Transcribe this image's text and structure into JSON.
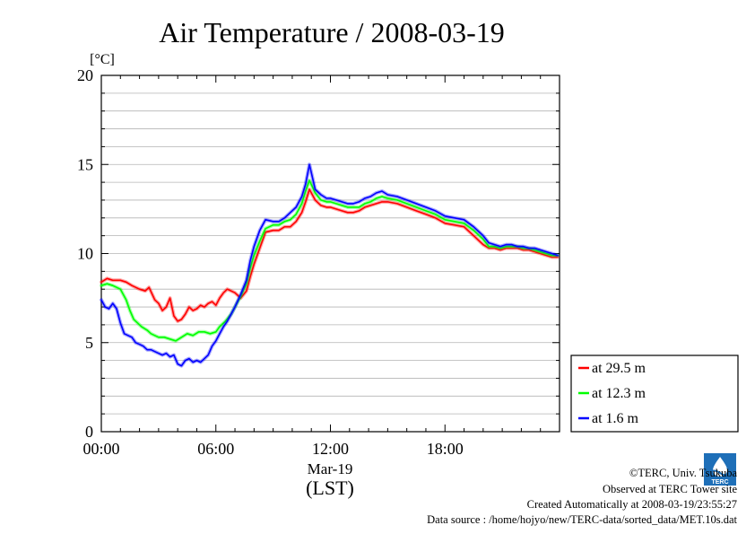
{
  "chart_data": {
    "type": "line",
    "title": "Air Temperature / 2008-03-19",
    "ylabel": "[°C]",
    "xlabel_date": "Mar-19",
    "xlabel_unit": "(LST)",
    "ylim": [
      0,
      20
    ],
    "xlim": [
      0,
      24
    ],
    "y_ticks": [
      "0",
      "5",
      "10",
      "15",
      "20"
    ],
    "x_ticks": [
      "00:00",
      "06:00",
      "12:00",
      "18:00"
    ],
    "grid": true,
    "legend_position": "right-bottom",
    "series": [
      {
        "name": "at 29.5 m",
        "color": "#ff0000",
        "x": [
          0,
          0.3,
          0.6,
          1.0,
          1.3,
          1.6,
          2.0,
          2.3,
          2.5,
          2.8,
          3.0,
          3.2,
          3.4,
          3.6,
          3.8,
          4.0,
          4.2,
          4.4,
          4.6,
          4.8,
          5.0,
          5.2,
          5.4,
          5.6,
          5.8,
          6.0,
          6.2,
          6.4,
          6.6,
          6.8,
          7.0,
          7.3,
          7.6,
          7.8,
          8.0,
          8.3,
          8.6,
          9.0,
          9.3,
          9.6,
          9.9,
          10.2,
          10.5,
          10.7,
          10.9,
          11.2,
          11.5,
          11.8,
          12.0,
          12.3,
          12.6,
          12.9,
          13.2,
          13.5,
          13.8,
          14.1,
          14.4,
          14.7,
          15.0,
          15.5,
          16.0,
          16.5,
          17.0,
          17.5,
          18.0,
          18.5,
          19.0,
          19.5,
          20.0,
          20.3,
          20.6,
          20.9,
          21.2,
          21.5,
          21.8,
          22.1,
          22.4,
          22.7,
          23.0,
          23.3,
          23.6,
          23.9
        ],
        "values": [
          8.4,
          8.6,
          8.5,
          8.5,
          8.4,
          8.2,
          8.0,
          7.9,
          8.1,
          7.4,
          7.2,
          6.8,
          7.0,
          7.5,
          6.5,
          6.2,
          6.3,
          6.6,
          7.0,
          6.8,
          6.9,
          7.1,
          7.0,
          7.2,
          7.3,
          7.1,
          7.5,
          7.8,
          8.0,
          7.9,
          7.8,
          7.5,
          7.9,
          8.7,
          9.4,
          10.3,
          11.2,
          11.3,
          11.3,
          11.5,
          11.5,
          11.8,
          12.3,
          12.9,
          13.6,
          13.0,
          12.7,
          12.6,
          12.6,
          12.5,
          12.4,
          12.3,
          12.3,
          12.4,
          12.6,
          12.7,
          12.8,
          12.9,
          12.9,
          12.8,
          12.6,
          12.4,
          12.2,
          12.0,
          11.7,
          11.6,
          11.5,
          11.0,
          10.5,
          10.3,
          10.3,
          10.2,
          10.3,
          10.3,
          10.3,
          10.2,
          10.2,
          10.1,
          10.0,
          9.9,
          9.8,
          9.8
        ]
      },
      {
        "name": "at 12.3 m",
        "color": "#00ff00",
        "x": [
          0,
          0.3,
          0.6,
          1.0,
          1.3,
          1.5,
          1.7,
          1.9,
          2.1,
          2.4,
          2.6,
          2.8,
          3.0,
          3.3,
          3.6,
          3.9,
          4.2,
          4.5,
          4.8,
          5.1,
          5.4,
          5.7,
          6.0,
          6.2,
          6.5,
          6.8,
          7.0,
          7.3,
          7.6,
          7.8,
          8.0,
          8.3,
          8.6,
          9.0,
          9.3,
          9.6,
          9.9,
          10.2,
          10.5,
          10.7,
          10.9,
          11.2,
          11.5,
          11.8,
          12.0,
          12.3,
          12.6,
          12.9,
          13.2,
          13.5,
          13.8,
          14.1,
          14.4,
          14.7,
          15.0,
          15.5,
          16.0,
          16.5,
          17.0,
          17.5,
          18.0,
          18.5,
          19.0,
          19.5,
          20.0,
          20.3,
          20.6,
          20.9,
          21.2,
          21.5,
          21.8,
          22.1,
          22.4,
          22.7,
          23.0,
          23.3,
          23.6,
          23.9
        ],
        "values": [
          8.2,
          8.3,
          8.2,
          8.0,
          7.4,
          6.8,
          6.3,
          6.1,
          5.9,
          5.7,
          5.5,
          5.4,
          5.3,
          5.3,
          5.2,
          5.1,
          5.3,
          5.5,
          5.4,
          5.6,
          5.6,
          5.5,
          5.6,
          5.9,
          6.2,
          6.6,
          7.0,
          7.6,
          8.3,
          9.2,
          9.9,
          10.7,
          11.4,
          11.6,
          11.6,
          11.8,
          11.9,
          12.2,
          12.8,
          13.5,
          14.1,
          13.4,
          13.0,
          12.9,
          12.9,
          12.8,
          12.7,
          12.6,
          12.6,
          12.6,
          12.8,
          12.9,
          13.1,
          13.2,
          13.1,
          13.0,
          12.8,
          12.6,
          12.4,
          12.2,
          11.9,
          11.8,
          11.7,
          11.3,
          10.8,
          10.4,
          10.4,
          10.3,
          10.4,
          10.4,
          10.4,
          10.3,
          10.3,
          10.2,
          10.1,
          10.0,
          9.9,
          9.9
        ]
      },
      {
        "name": "at 1.6 m",
        "color": "#0000ff",
        "x": [
          0,
          0.2,
          0.4,
          0.6,
          0.8,
          1.0,
          1.2,
          1.4,
          1.6,
          1.8,
          2.0,
          2.2,
          2.4,
          2.6,
          2.8,
          3.0,
          3.2,
          3.4,
          3.6,
          3.8,
          4.0,
          4.2,
          4.4,
          4.6,
          4.8,
          5.0,
          5.2,
          5.4,
          5.6,
          5.8,
          6.0,
          6.2,
          6.4,
          6.6,
          6.8,
          7.0,
          7.3,
          7.6,
          7.8,
          8.0,
          8.3,
          8.6,
          9.0,
          9.3,
          9.6,
          9.9,
          10.2,
          10.5,
          10.7,
          10.9,
          11.2,
          11.5,
          11.8,
          12.0,
          12.3,
          12.6,
          12.9,
          13.2,
          13.5,
          13.8,
          14.1,
          14.4,
          14.7,
          15.0,
          15.5,
          16.0,
          16.5,
          17.0,
          17.5,
          18.0,
          18.5,
          19.0,
          19.5,
          20.0,
          20.3,
          20.6,
          20.9,
          21.2,
          21.5,
          21.8,
          22.1,
          22.4,
          22.7,
          23.0,
          23.3,
          23.6,
          23.9
        ],
        "values": [
          7.4,
          7.0,
          6.9,
          7.2,
          6.9,
          6.1,
          5.5,
          5.4,
          5.3,
          5.0,
          4.9,
          4.8,
          4.6,
          4.6,
          4.5,
          4.4,
          4.3,
          4.4,
          4.2,
          4.3,
          3.8,
          3.7,
          4.0,
          4.1,
          3.9,
          4.0,
          3.9,
          4.1,
          4.3,
          4.8,
          5.1,
          5.5,
          5.9,
          6.2,
          6.6,
          7.0,
          7.7,
          8.5,
          9.6,
          10.4,
          11.3,
          11.9,
          11.8,
          11.8,
          12.0,
          12.3,
          12.6,
          13.2,
          13.9,
          15.0,
          13.6,
          13.3,
          13.1,
          13.1,
          13.0,
          12.9,
          12.8,
          12.8,
          12.9,
          13.1,
          13.2,
          13.4,
          13.5,
          13.3,
          13.2,
          13.0,
          12.8,
          12.6,
          12.4,
          12.1,
          12.0,
          11.9,
          11.5,
          11.0,
          10.6,
          10.5,
          10.4,
          10.5,
          10.5,
          10.4,
          10.4,
          10.3,
          10.3,
          10.2,
          10.1,
          10.0,
          9.9
        ]
      }
    ]
  },
  "footer": {
    "copyright": "©TERC, Univ. Tsukuba",
    "observed": "Observed at TERC Tower site",
    "created": "Created Automatically at 2008-03-19/23:55:27",
    "source": "Data source : /home/hojyo/new/TERC-data/sorted_data/MET.10s.dat",
    "logo_text": "TERC"
  }
}
